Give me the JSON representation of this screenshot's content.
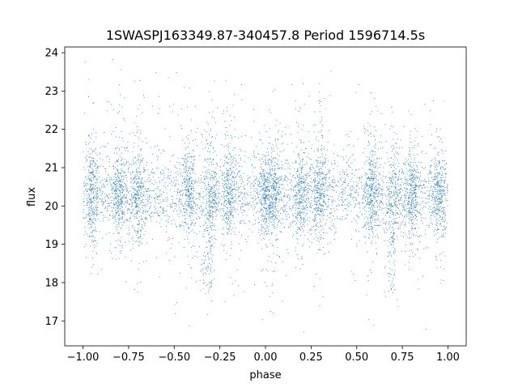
{
  "chart_data": {
    "type": "scatter",
    "title": "1SWASPJ163349.87-340457.8 Period 1596714.5s",
    "xlabel": "phase",
    "ylabel": "flux",
    "xlim": [
      -1.1,
      1.1
    ],
    "ylim": [
      16.35,
      24.15
    ],
    "xticks": [
      -1.0,
      -0.75,
      -0.5,
      -0.25,
      0.0,
      0.25,
      0.5,
      0.75,
      1.0
    ],
    "xtick_labels": [
      "−1.00",
      "−0.75",
      "−0.50",
      "−0.25",
      "0.00",
      "0.25",
      "0.50",
      "0.75",
      "1.00"
    ],
    "yticks": [
      17,
      18,
      19,
      20,
      21,
      22,
      23,
      24
    ],
    "ytick_labels": [
      "17",
      "18",
      "19",
      "20",
      "21",
      "22",
      "23",
      "24"
    ],
    "grid": false,
    "marker_color": "#1f77b4",
    "phase_range": [
      -1.0,
      1.0
    ],
    "flux_central": 20.3,
    "flux_core_spread": 0.55,
    "flux_min": 16.7,
    "flux_max": 23.9,
    "point_count": 7000,
    "dense_phase_clumps": [
      -0.95,
      -0.8,
      -0.7,
      -0.42,
      -0.3,
      -0.2,
      0.0,
      0.05,
      0.2,
      0.3,
      0.58,
      0.7,
      0.8,
      0.95
    ],
    "dip_phases": [
      -0.32,
      0.68
    ],
    "dip_depth": 17.7
  }
}
